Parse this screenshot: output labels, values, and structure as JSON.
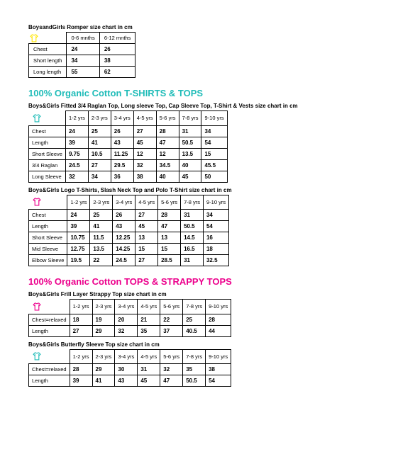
{
  "colors": {
    "teal": "#1fbcb8",
    "pink": "#ec008c",
    "yellow": "#ffe600",
    "border": "#000000",
    "text": "#000000",
    "bg": "#ffffff"
  },
  "romper": {
    "title": "BoysandGirls Romper size chart in cm",
    "icon_color": "#ffe600",
    "headers": [
      "0-6 mnths",
      "6-12 mnths"
    ],
    "rows": [
      {
        "label": "Chest",
        "values": [
          "24",
          "26"
        ]
      },
      {
        "label": "Short length",
        "values": [
          "34",
          "38"
        ]
      },
      {
        "label": "Long length",
        "values": [
          "55",
          "62"
        ]
      }
    ]
  },
  "section1": {
    "heading": "100% Organic Cotton T-SHIRTS & TOPS"
  },
  "tshirts1": {
    "title": "Boys&Girls Fitted 3/4 Raglan Top, Long sleeve Top, Cap Sleeve Top, T-Shirt & Vests size chart in cm",
    "icon_color": "#1fbcb8",
    "headers": [
      "1-2 yrs",
      "2-3 yrs",
      "3-4 yrs",
      "4-5 yrs",
      "5-6 yrs",
      "7-8 yrs",
      "9-10 yrs"
    ],
    "rows": [
      {
        "label": "Chest",
        "values": [
          "24",
          "25",
          "26",
          "27",
          "28",
          "31",
          "34"
        ]
      },
      {
        "label": "Length",
        "values": [
          "39",
          "41",
          "43",
          "45",
          "47",
          "50.5",
          "54"
        ]
      },
      {
        "label": "Short Sleeve",
        "values": [
          "9.75",
          "10.5",
          "11.25",
          "12",
          "12",
          "13.5",
          "15"
        ]
      },
      {
        "label": "3/4 Raglan",
        "values": [
          "24.5",
          "27",
          "29.5",
          "32",
          "34.5",
          "40",
          "45.5"
        ]
      },
      {
        "label": "Long Sleeve",
        "values": [
          "32",
          "34",
          "36",
          "38",
          "40",
          "45",
          "50"
        ]
      }
    ]
  },
  "tshirts2": {
    "title": "Boys&Girls Logo T-Shirts, Slash Neck Top and Polo T-Shirt size chart in cm",
    "icon_color": "#ec008c",
    "headers": [
      "1-2 yrs",
      "2-3 yrs",
      "3-4 yrs",
      "4-5 yrs",
      "5-6 yrs",
      "7-8 yrs",
      "9-10 yrs"
    ],
    "rows": [
      {
        "label": "Chest",
        "values": [
          "24",
          "25",
          "26",
          "27",
          "28",
          "31",
          "34"
        ]
      },
      {
        "label": "Length",
        "values": [
          "39",
          "41",
          "43",
          "45",
          "47",
          "50.5",
          "54"
        ]
      },
      {
        "label": "Short Sleeve",
        "values": [
          "10.75",
          "11.5",
          "12.25",
          "13",
          "13",
          "14.5",
          "16"
        ]
      },
      {
        "label": "Mid Sleeve",
        "values": [
          "12.75",
          "13.5",
          "14.25",
          "15",
          "15",
          "16.5",
          "18"
        ]
      },
      {
        "label": "Elbow Sleeve",
        "values": [
          "19.5",
          "22",
          "24.5",
          "27",
          "28.5",
          "31",
          "32.5"
        ]
      }
    ]
  },
  "section2": {
    "heading": "100% Organic Cotton TOPS & STRAPPY TOPS"
  },
  "strappy": {
    "title": "Boys&Girls Frill Layer Strappy Top size chart in cm",
    "icon_color": "#ec008c",
    "headers": [
      "1-2 yrs",
      "2-3 yrs",
      "3-4 yrs",
      "4-5 yrs",
      "5-6 yrs",
      "7-8 yrs",
      "9-10 yrs"
    ],
    "rows": [
      {
        "label": "Chest=relaxed",
        "values": [
          "18",
          "19",
          "20",
          "21",
          "22",
          "25",
          "28"
        ]
      },
      {
        "label": "Length",
        "values": [
          "27",
          "29",
          "32",
          "35",
          "37",
          "40.5",
          "44"
        ]
      }
    ]
  },
  "butterfly": {
    "title": "Boys&Girls Butterfly Sleeve Top size chart in cm",
    "icon_color": "#1fbcb8",
    "headers": [
      "1-2 yrs",
      "2-3 yrs",
      "3-4 yrs",
      "4-5 yrs",
      "5-6 yrs",
      "7-8 yrs",
      "9-10 yrs"
    ],
    "rows": [
      {
        "label": "Chest=relaxed",
        "values": [
          "28",
          "29",
          "30",
          "31",
          "32",
          "35",
          "38"
        ]
      },
      {
        "label": "Length",
        "values": [
          "39",
          "41",
          "43",
          "45",
          "47",
          "50.5",
          "54"
        ]
      }
    ]
  }
}
